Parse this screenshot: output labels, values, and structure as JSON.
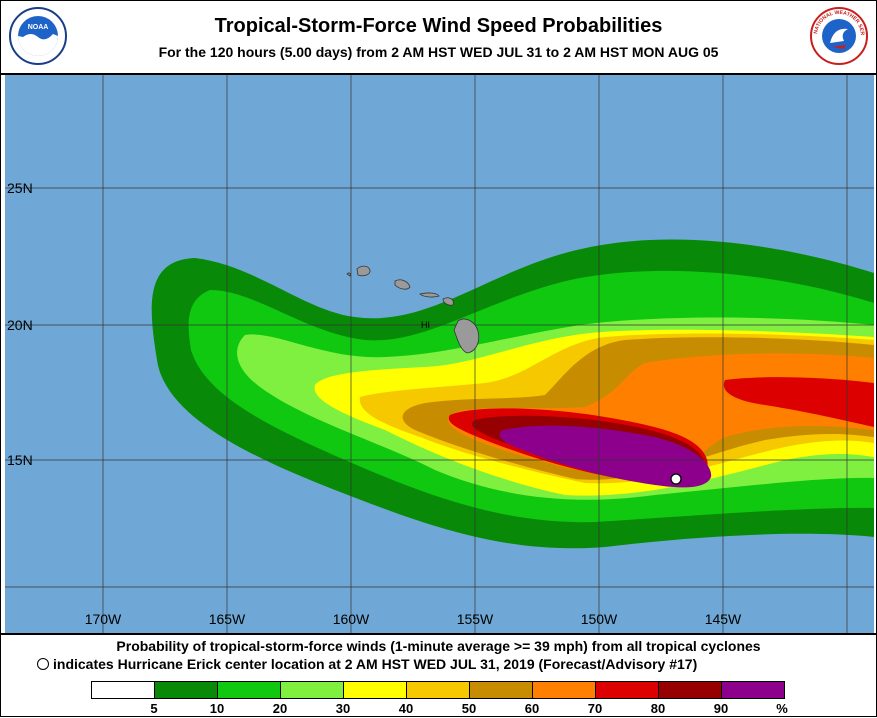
{
  "header": {
    "title": "Tropical-Storm-Force Wind Speed Probabilities",
    "subtitle": "For the 120 hours (5.00 days) from 2 AM HST WED JUL 31 to 2 AM HST MON AUG 05",
    "noaa_logo_text": "NOAA",
    "nws_logo_text": "NATIONAL WEATHER SERVICE"
  },
  "map": {
    "ocean_color": "#6fa8d6",
    "land_color": "#9a9a9a",
    "lat_labels": [
      "25N",
      "20N",
      "15N"
    ],
    "lon_labels": [
      "170W",
      "165W",
      "160W",
      "155W",
      "150W",
      "145W"
    ],
    "island_label": "HI",
    "storm_center_name": "Hurricane Erick"
  },
  "footer": {
    "caption1": "Probability of tropical-storm-force winds (1-minute average >= 39 mph) from all tropical cyclones",
    "caption2": "indicates Hurricane Erick center location at 2 AM HST WED JUL 31, 2019 (Forecast/Advisory #17)"
  },
  "legend": {
    "colors": [
      "#ffffff",
      "#088a08",
      "#10c810",
      "#80f040",
      "#ffff00",
      "#f5c800",
      "#c88c00",
      "#ff8000",
      "#dc0000",
      "#960000",
      "#8c008c"
    ],
    "labels": [
      "5",
      "10",
      "20",
      "30",
      "40",
      "50",
      "60",
      "70",
      "80",
      "90",
      "%"
    ]
  }
}
